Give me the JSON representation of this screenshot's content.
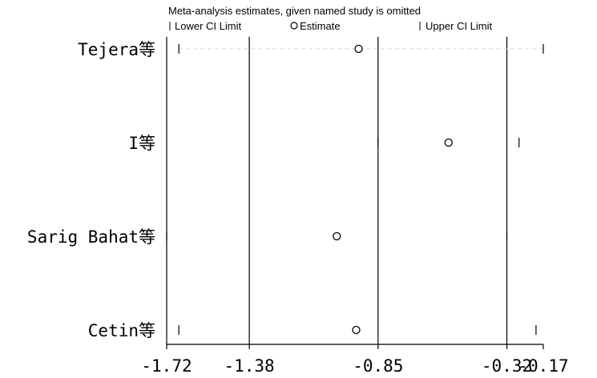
{
  "chart_data": {
    "type": "scatter",
    "title": "Meta-analysis estimates, given named study is omitted",
    "legend": {
      "placement": "top",
      "entries": [
        {
          "symbol": "tick",
          "label": "Lower CI Limit"
        },
        {
          "symbol": "circle",
          "label": "Estimate"
        },
        {
          "symbol": "tick",
          "label": "Upper CI Limit"
        }
      ]
    },
    "xlim": [
      -1.72,
      -0.17
    ],
    "xticks": [
      -1.72,
      -1.38,
      -0.85,
      -0.32,
      -0.17
    ],
    "xtick_labels": [
      "-1.72",
      "-1.38",
      "-0.85",
      "-0.32",
      "-0.17"
    ],
    "reference_lines": [
      -1.38,
      -0.85,
      -0.32
    ],
    "studies": [
      {
        "name": "Tejera等",
        "lower": -1.67,
        "estimate": -0.93,
        "upper": -0.17
      },
      {
        "name": "I等",
        "lower": -0.85,
        "estimate": -0.56,
        "upper": -0.27
      },
      {
        "name": "Sarig Bahat等",
        "lower": -1.72,
        "estimate": -1.02,
        "upper": -0.32
      },
      {
        "name": "Cetin等",
        "lower": -1.67,
        "estimate": -0.94,
        "upper": -0.2
      }
    ],
    "grid": false
  }
}
